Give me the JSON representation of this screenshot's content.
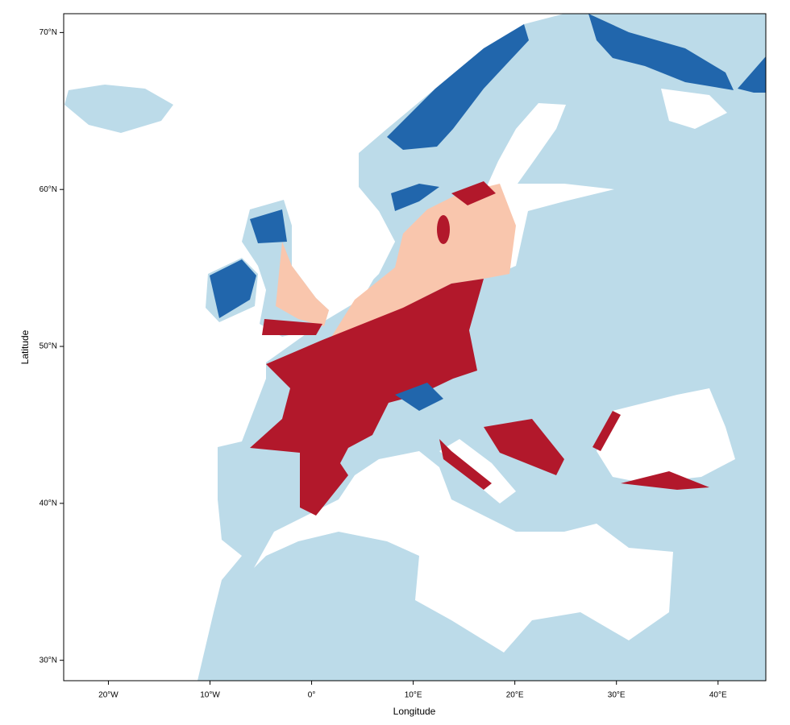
{
  "chart_data": {
    "type": "map",
    "x_label": "Longitude",
    "y_label": "Latitude",
    "xlim": [
      -24.4,
      44.7
    ],
    "ylim": [
      28.7,
      71.2
    ],
    "xticks": [
      {
        "value": -20,
        "label": "20°W"
      },
      {
        "value": -10,
        "label": "10°W"
      },
      {
        "value": 0,
        "label": "0°"
      },
      {
        "value": 10,
        "label": "10°E"
      },
      {
        "value": 20,
        "label": "20°E"
      },
      {
        "value": 30,
        "label": "30°E"
      },
      {
        "value": 40,
        "label": "40°E"
      }
    ],
    "yticks": [
      {
        "value": 30,
        "label": "30°N"
      },
      {
        "value": 40,
        "label": "40°N"
      },
      {
        "value": 50,
        "label": "50°N"
      },
      {
        "value": 60,
        "label": "60°N"
      },
      {
        "value": 70,
        "label": "70°N"
      }
    ]
  }
}
